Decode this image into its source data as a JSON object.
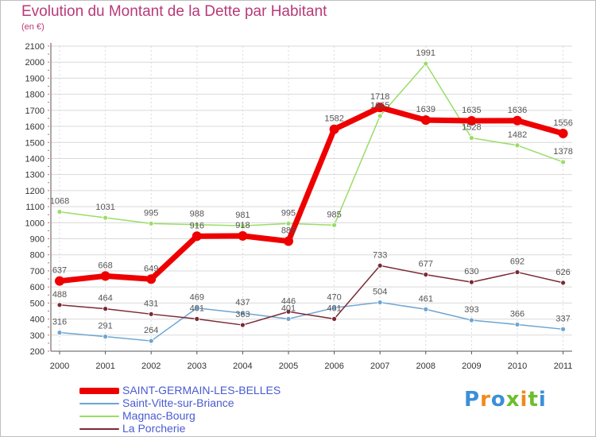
{
  "title": "Evolution du Montant de la Dette par Habitant",
  "subtitle": "(en €)",
  "brand": "Proxiti",
  "colors": {
    "title": "#b83a7a",
    "legend_text": "#4a5bd0",
    "grid": "#d9d9d9",
    "axis": "#555555",
    "value_label": "#555555"
  },
  "chart_data": {
    "type": "line",
    "title": "Evolution du Montant de la Dette par Habitant",
    "subtitle": "(en €)",
    "xlabel": "",
    "ylabel": "",
    "x": [
      "2000",
      "2001",
      "2002",
      "2003",
      "2004",
      "2005",
      "2006",
      "2007",
      "2008",
      "2009",
      "2010",
      "2011"
    ],
    "ylim": [
      200,
      2100
    ],
    "yticks": [
      200,
      300,
      400,
      500,
      600,
      700,
      800,
      900,
      1000,
      1100,
      1200,
      1300,
      1400,
      1500,
      1600,
      1700,
      1800,
      1900,
      2000,
      2100
    ],
    "grid": true,
    "legend_position": "bottom-left",
    "series": [
      {
        "name": "SAINT-GERMAIN-LES-BELLES",
        "color": "#ee0000",
        "values": [
          637,
          668,
          649,
          916,
          918,
          885,
          1582,
          1718,
          1639,
          1635,
          1636,
          1556
        ]
      },
      {
        "name": "Saint-Vitte-sur-Briance",
        "color": "#6da5d3",
        "values": [
          316,
          291,
          264,
          469,
          437,
          401,
          470,
          504,
          461,
          393,
          366,
          337
        ]
      },
      {
        "name": "Magnac-Bourg",
        "color": "#99dd66",
        "values": [
          1068,
          1031,
          995,
          988,
          981,
          995,
          985,
          1665,
          1991,
          1528,
          1482,
          1378
        ]
      },
      {
        "name": "La Porcherie",
        "color": "#7a2a35",
        "values": [
          488,
          464,
          431,
          401,
          363,
          446,
          401,
          733,
          677,
          630,
          692,
          626
        ]
      }
    ]
  }
}
